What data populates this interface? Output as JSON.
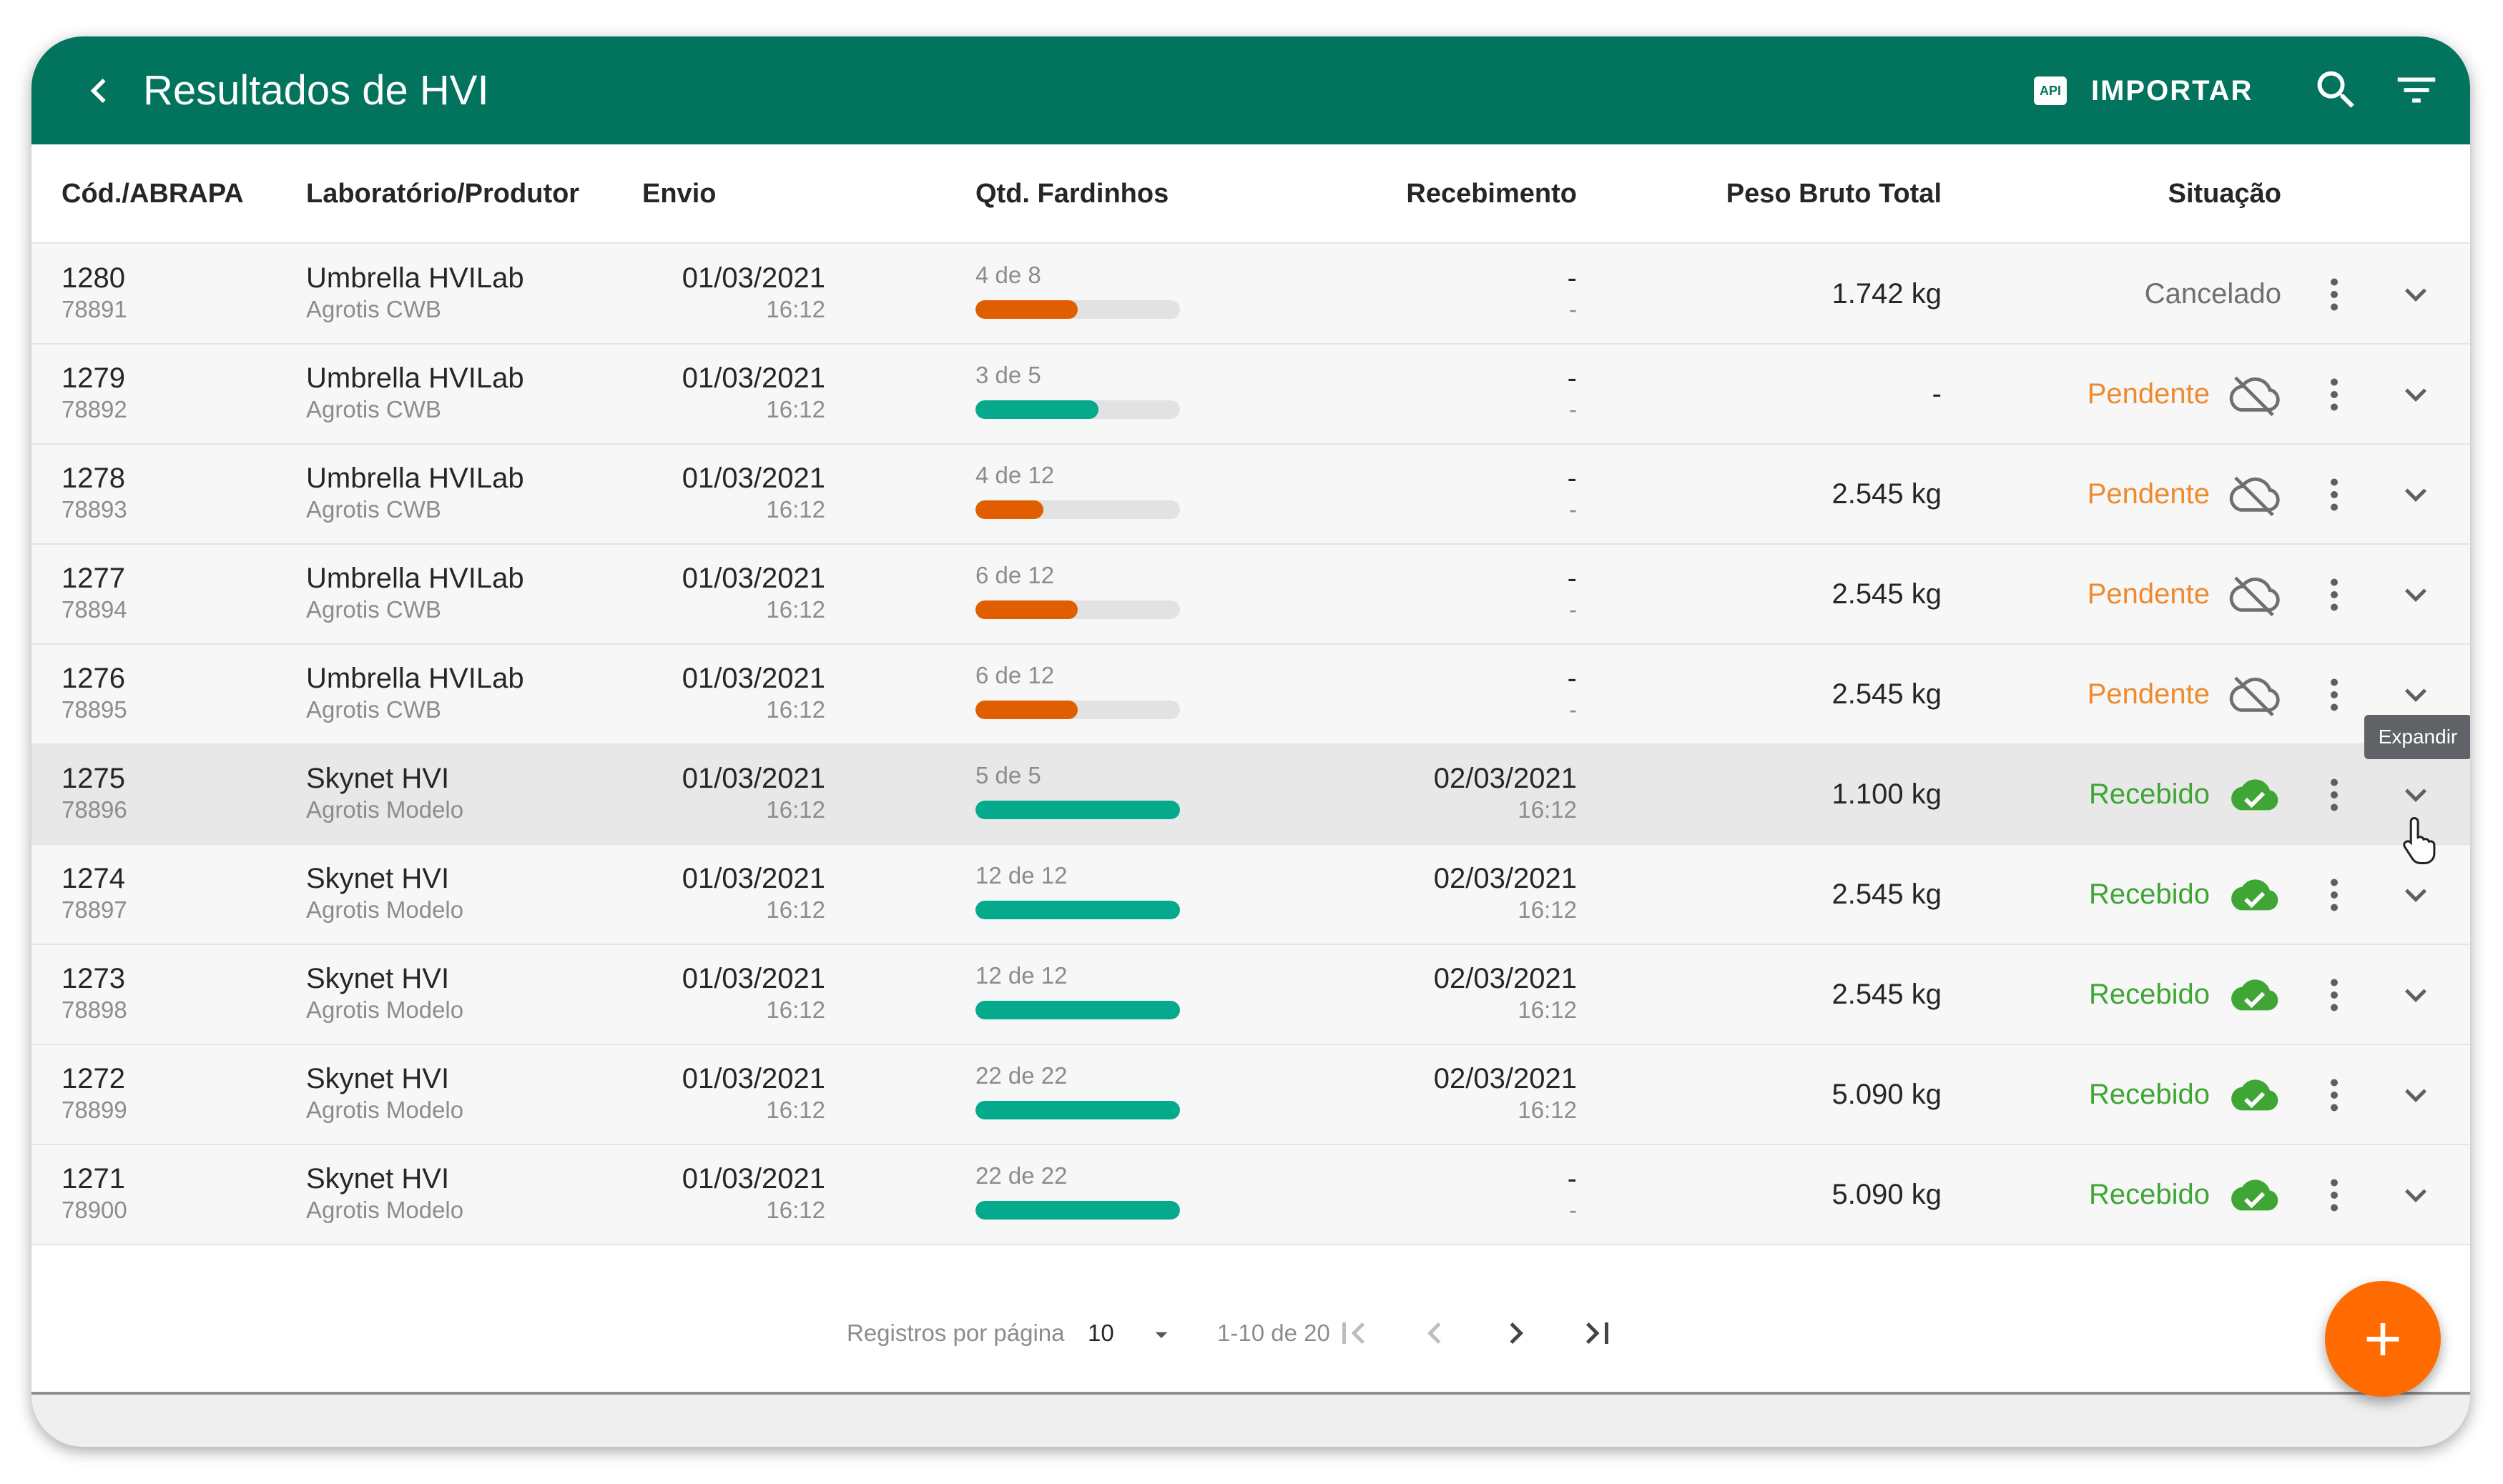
{
  "appbar": {
    "title": "Resultados de HVI",
    "import_label": "IMPORTAR",
    "api_badge": "API"
  },
  "columns": {
    "codigo": "Cód./ABRAPA",
    "laboratorio": "Laboratório/Produtor",
    "envio": "Envio",
    "qtd": "Qtd. Fardinhos",
    "recebimento": "Recebimento",
    "peso": "Peso Bruto Total",
    "situacao": "Situação"
  },
  "rows": [
    {
      "cod": "1280",
      "abrapa": "78891",
      "lab": "Umbrella HVILab",
      "produtor": "Agrotis CWB",
      "envio_date": "01/03/2021",
      "envio_time": "16:12",
      "qtd_label": "4 de 8",
      "qtd_fraction": 0.5,
      "qtd_color": "#e05e00",
      "receb_date": "-",
      "receb_time": "-",
      "peso": "1.742 kg",
      "status": "Cancelado",
      "status_color": "#6f6f6f",
      "status_icon": "none"
    },
    {
      "cod": "1279",
      "abrapa": "78892",
      "lab": "Umbrella HVILab",
      "produtor": "Agrotis CWB",
      "envio_date": "01/03/2021",
      "envio_time": "16:12",
      "qtd_label": "3 de 5",
      "qtd_fraction": 0.6,
      "qtd_color": "#05aa8c",
      "receb_date": "-",
      "receb_time": "-",
      "peso": "-",
      "status": "Pendente",
      "status_color": "#ee8a2e",
      "status_icon": "cloud-off-icon"
    },
    {
      "cod": "1278",
      "abrapa": "78893",
      "lab": "Umbrella HVILab",
      "produtor": "Agrotis CWB",
      "envio_date": "01/03/2021",
      "envio_time": "16:12",
      "qtd_label": "4 de 12",
      "qtd_fraction": 0.3333,
      "qtd_color": "#e05e00",
      "receb_date": "-",
      "receb_time": "-",
      "peso": "2.545 kg",
      "status": "Pendente",
      "status_color": "#ee8a2e",
      "status_icon": "cloud-off-icon"
    },
    {
      "cod": "1277",
      "abrapa": "78894",
      "lab": "Umbrella HVILab",
      "produtor": "Agrotis CWB",
      "envio_date": "01/03/2021",
      "envio_time": "16:12",
      "qtd_label": "6 de 12",
      "qtd_fraction": 0.5,
      "qtd_color": "#e05e00",
      "receb_date": "-",
      "receb_time": "-",
      "peso": "2.545 kg",
      "status": "Pendente",
      "status_color": "#ee8a2e",
      "status_icon": "cloud-off-icon"
    },
    {
      "cod": "1276",
      "abrapa": "78895",
      "lab": "Umbrella HVILab",
      "produtor": "Agrotis CWB",
      "envio_date": "01/03/2021",
      "envio_time": "16:12",
      "qtd_label": "6 de 12",
      "qtd_fraction": 0.5,
      "qtd_color": "#e05e00",
      "receb_date": "-",
      "receb_time": "-",
      "peso": "2.545 kg",
      "status": "Pendente",
      "status_color": "#ee8a2e",
      "status_icon": "cloud-off-icon"
    },
    {
      "cod": "1275",
      "abrapa": "78896",
      "lab": "Skynet HVI",
      "produtor": "Agrotis Modelo",
      "envio_date": "01/03/2021",
      "envio_time": "16:12",
      "qtd_label": "5 de 5",
      "qtd_fraction": 1,
      "qtd_color": "#05aa8c",
      "receb_date": "02/03/2021",
      "receb_time": "16:12",
      "peso": "1.100 kg",
      "status": "Recebido",
      "status_color": "#3fa535",
      "status_icon": "cloud-done-icon",
      "hover": true
    },
    {
      "cod": "1274",
      "abrapa": "78897",
      "lab": "Skynet HVI",
      "produtor": "Agrotis Modelo",
      "envio_date": "01/03/2021",
      "envio_time": "16:12",
      "qtd_label": "12 de 12",
      "qtd_fraction": 1,
      "qtd_color": "#05aa8c",
      "receb_date": "02/03/2021",
      "receb_time": "16:12",
      "peso": "2.545 kg",
      "status": "Recebido",
      "status_color": "#3fa535",
      "status_icon": "cloud-done-icon"
    },
    {
      "cod": "1273",
      "abrapa": "78898",
      "lab": "Skynet HVI",
      "produtor": "Agrotis Modelo",
      "envio_date": "01/03/2021",
      "envio_time": "16:12",
      "qtd_label": "12 de 12",
      "qtd_fraction": 1,
      "qtd_color": "#05aa8c",
      "receb_date": "02/03/2021",
      "receb_time": "16:12",
      "peso": "2.545 kg",
      "status": "Recebido",
      "status_color": "#3fa535",
      "status_icon": "cloud-done-icon"
    },
    {
      "cod": "1272",
      "abrapa": "78899",
      "lab": "Skynet HVI",
      "produtor": "Agrotis Modelo",
      "envio_date": "01/03/2021",
      "envio_time": "16:12",
      "qtd_label": "22 de 22",
      "qtd_fraction": 1,
      "qtd_color": "#05aa8c",
      "receb_date": "02/03/2021",
      "receb_time": "16:12",
      "peso": "5.090 kg",
      "status": "Recebido",
      "status_color": "#3fa535",
      "status_icon": "cloud-done-icon"
    },
    {
      "cod": "1271",
      "abrapa": "78900",
      "lab": "Skynet HVI",
      "produtor": "Agrotis Modelo",
      "envio_date": "01/03/2021",
      "envio_time": "16:12",
      "qtd_label": "22 de 22",
      "qtd_fraction": 1,
      "qtd_color": "#05aa8c",
      "receb_date": "-",
      "receb_time": "-",
      "peso": "5.090 kg",
      "status": "Recebido",
      "status_color": "#3fa535",
      "status_icon": "cloud-done-icon"
    }
  ],
  "tooltip": "Expandir",
  "pagination": {
    "per_page_label": "Registros por página",
    "per_page_value": "10",
    "range": "1-10 de 20"
  },
  "fab": {
    "label": "+"
  },
  "colors": {
    "primary": "#02735c",
    "accent": "#ff6b00"
  }
}
